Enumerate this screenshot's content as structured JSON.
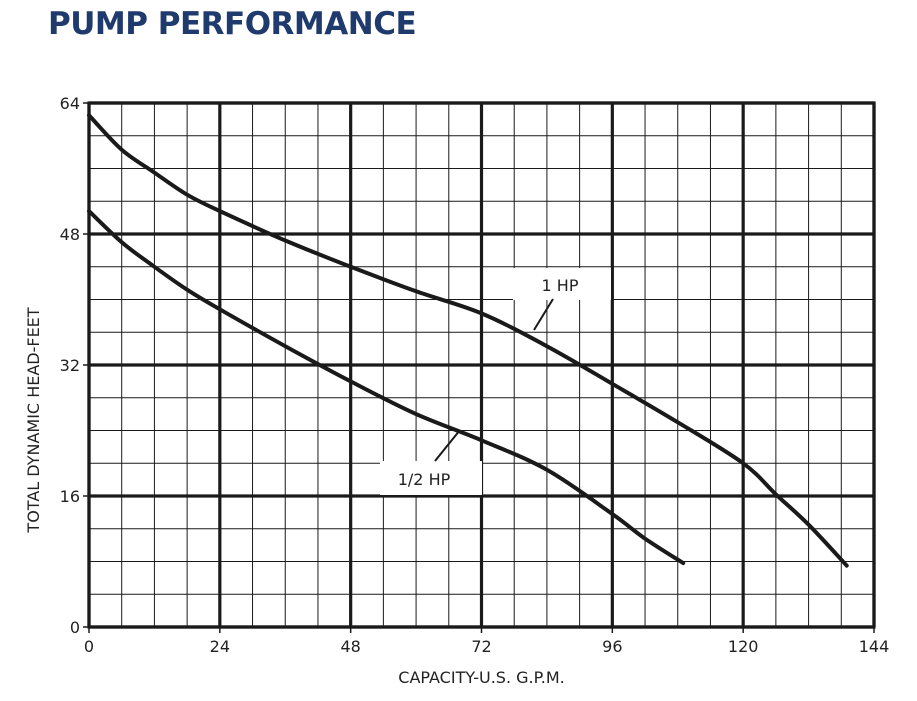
{
  "title": "PUMP PERFORMANCE",
  "chart_data": {
    "type": "line",
    "title": "PUMP PERFORMANCE",
    "xlabel": "CAPACITY-U.S. G.P.M.",
    "ylabel": "TOTAL DYNAMIC HEAD-FEET",
    "xlim": [
      0,
      144
    ],
    "ylim": [
      0,
      64
    ],
    "x_ticks": [
      "0",
      "24",
      "48",
      "72",
      "96",
      "120",
      "144"
    ],
    "y_ticks": [
      "0",
      "16",
      "32",
      "48",
      "64"
    ],
    "grid": true,
    "series": [
      {
        "name": "1 HP",
        "x": [
          0,
          6,
          12,
          18,
          24,
          36,
          48,
          60,
          72,
          84,
          96,
          108,
          120,
          126,
          132,
          139
        ],
        "y": [
          62.5,
          58.3,
          55.5,
          52.8,
          50.8,
          47.2,
          44.0,
          41.0,
          38.3,
          34.3,
          29.7,
          25.0,
          20.0,
          16.2,
          12.5,
          7.5
        ]
      },
      {
        "name": "1/2 HP",
        "x": [
          0,
          6,
          12,
          18,
          24,
          36,
          48,
          60,
          72,
          84,
          96,
          102,
          109
        ],
        "y": [
          50.8,
          47.0,
          44.0,
          41.2,
          38.8,
          34.3,
          30.0,
          26.0,
          22.8,
          19.2,
          13.8,
          10.8,
          7.8
        ]
      }
    ]
  }
}
